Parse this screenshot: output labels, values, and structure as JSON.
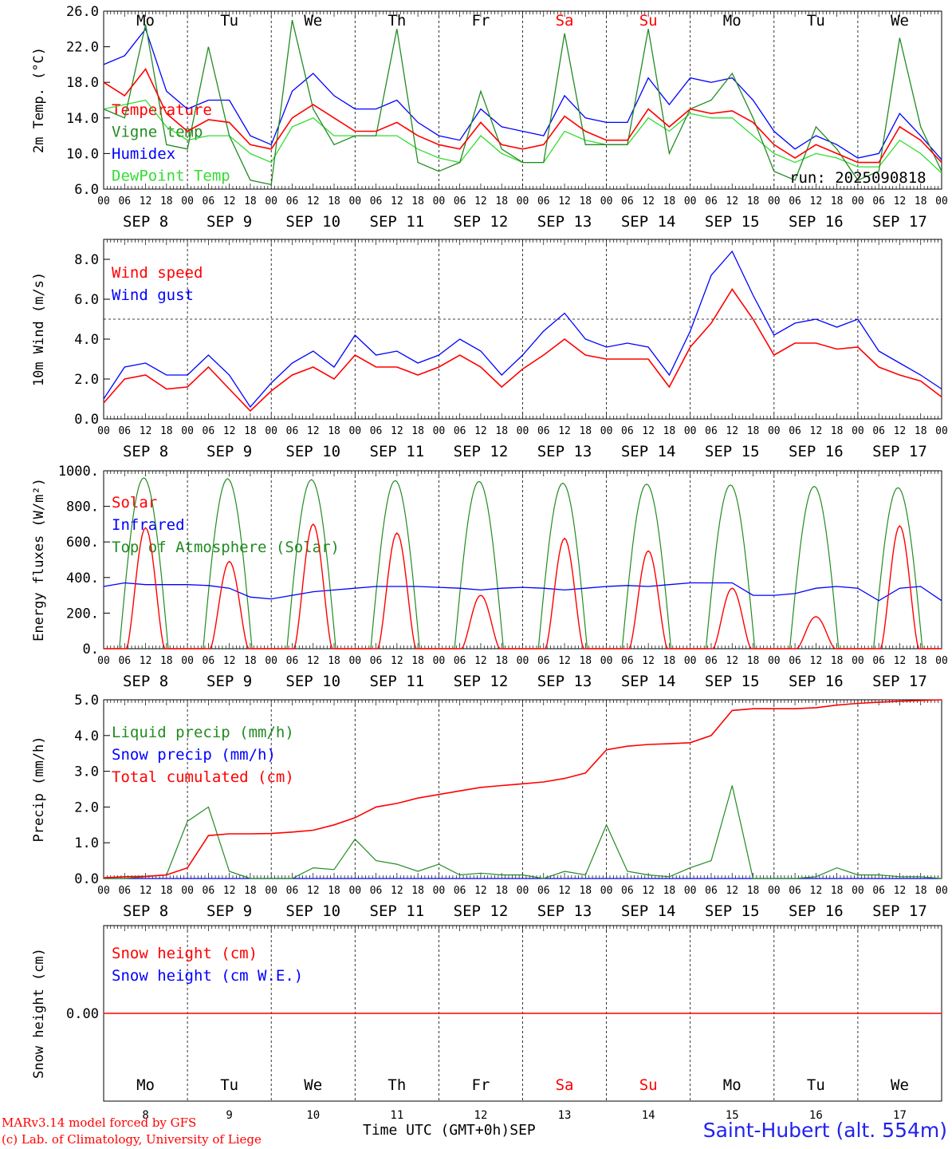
{
  "days": [
    "Mo",
    "Tu",
    "We",
    "Th",
    "Fr",
    "Sa",
    "Su",
    "Mo",
    "Tu",
    "We"
  ],
  "weekend_days": [
    5,
    6
  ],
  "date_labels": [
    "SEP  8",
    "SEP  9",
    "SEP 10",
    "SEP 11",
    "SEP 12",
    "SEP 13",
    "SEP 14",
    "SEP 15",
    "SEP 16",
    "SEP 17"
  ],
  "hour_ticks": [
    "00",
    "06",
    "12",
    "18"
  ],
  "bottom_day_numbers": [
    "8",
    "9",
    "10",
    "11",
    "12",
    "13",
    "14",
    "15",
    "16",
    "17"
  ],
  "colors": {
    "red": "#ff0000",
    "green": "#228b22",
    "blue": "#0000ff",
    "lime": "#33dd33",
    "label_blue": "#2222ee"
  },
  "chart_data": [
    {
      "type": "line",
      "ylabel": "2m Temp. (°C)",
      "ylim": [
        6,
        26
      ],
      "yticks": [
        "6.0",
        "10.0",
        "14.0",
        "18.0",
        "22.0",
        "26.0"
      ],
      "annotation": "run: 2025090818",
      "legend": [
        "Temperature",
        "Vigne temp",
        "Humidex",
        "DewPoint Temp"
      ],
      "x_hours": [
        0,
        6,
        12,
        18,
        24,
        30,
        36,
        42,
        48,
        54,
        60,
        66,
        72,
        78,
        84,
        90,
        96,
        102,
        108,
        114,
        120,
        126,
        132,
        138,
        144,
        150,
        156,
        162,
        168,
        174,
        180,
        186,
        192,
        198,
        204,
        210,
        216,
        222,
        228,
        234,
        240
      ],
      "series": [
        {
          "name": "Temperature",
          "values": [
            18,
            16.5,
            19.5,
            14.5,
            12.5,
            13.8,
            13.5,
            11,
            10.5,
            14,
            15.5,
            14,
            12.5,
            12.5,
            13.5,
            12,
            11,
            10.5,
            13.5,
            11,
            10.5,
            11,
            14.2,
            12.5,
            11.5,
            11.5,
            15,
            13,
            15,
            14.5,
            14.8,
            13.5,
            11,
            9.5,
            11,
            10,
            9,
            9,
            13,
            11.5,
            9
          ]
        },
        {
          "name": "Vigne temp",
          "values": [
            15,
            14,
            24.5,
            11,
            10.5,
            22,
            12,
            7,
            6.5,
            25,
            15,
            11,
            12,
            12,
            24,
            9,
            8,
            9,
            17,
            10.5,
            9,
            9,
            23.5,
            11,
            11,
            11,
            24,
            10,
            15,
            16,
            19,
            14,
            8,
            7,
            13,
            10.5,
            7,
            8,
            23,
            13,
            8
          ]
        },
        {
          "name": "Humidex",
          "values": [
            20,
            21,
            24,
            17,
            15,
            16,
            16,
            12,
            11,
            17,
            19,
            16.5,
            15,
            15,
            16,
            13.5,
            12,
            11.5,
            15,
            13,
            12.5,
            12,
            16.5,
            14,
            13.5,
            13.5,
            18.5,
            15.5,
            18.5,
            18,
            18.5,
            16,
            12.5,
            10.5,
            12,
            11,
            9.5,
            10,
            14.5,
            12,
            9.3
          ]
        },
        {
          "name": "DewPoint Temp",
          "values": [
            15,
            15.5,
            16,
            13,
            11.5,
            12,
            12,
            10,
            9,
            13,
            14,
            12,
            12,
            12,
            12,
            10.5,
            9.5,
            9,
            12,
            10,
            9,
            9,
            12.5,
            11.5,
            11,
            11,
            14,
            12.5,
            14.5,
            14,
            14,
            12,
            10,
            9,
            10,
            9.5,
            8.5,
            8.5,
            11.5,
            10,
            7.8
          ]
        }
      ]
    },
    {
      "type": "line",
      "ylabel": "10m Wind (m/s)",
      "ylim": [
        0,
        9
      ],
      "yticks": [
        "0.0",
        "2.0",
        "4.0",
        "6.0",
        "8.0"
      ],
      "reference_line": 5,
      "legend": [
        "Wind speed",
        "Wind gust"
      ],
      "x_hours": [
        0,
        6,
        12,
        18,
        24,
        30,
        36,
        42,
        48,
        54,
        60,
        66,
        72,
        78,
        84,
        90,
        96,
        102,
        108,
        114,
        120,
        126,
        132,
        138,
        144,
        150,
        156,
        162,
        168,
        174,
        180,
        186,
        192,
        198,
        204,
        210,
        216,
        222,
        228,
        234,
        240
      ],
      "series": [
        {
          "name": "Wind speed",
          "values": [
            0.8,
            2,
            2.2,
            1.5,
            1.6,
            2.6,
            1.5,
            0.4,
            1.4,
            2.2,
            2.6,
            2.0,
            3.2,
            2.6,
            2.6,
            2.2,
            2.6,
            3.2,
            2.6,
            1.6,
            2.5,
            3.2,
            4.0,
            3.2,
            3.0,
            3.0,
            3.0,
            1.6,
            3.6,
            4.8,
            6.5,
            5.0,
            3.2,
            3.8,
            3.8,
            3.5,
            3.6,
            2.6,
            2.2,
            1.9,
            1.1
          ]
        },
        {
          "name": "Wind gust",
          "values": [
            1.0,
            2.6,
            2.8,
            2.2,
            2.2,
            3.2,
            2.2,
            0.6,
            1.8,
            2.8,
            3.4,
            2.6,
            4.2,
            3.2,
            3.4,
            2.8,
            3.2,
            4.0,
            3.4,
            2.2,
            3.2,
            4.4,
            5.3,
            4.0,
            3.6,
            3.8,
            3.6,
            2.2,
            4.4,
            7.2,
            8.4,
            6.2,
            4.2,
            4.8,
            5.0,
            4.6,
            5.0,
            3.4,
            2.8,
            2.2,
            1.5
          ]
        }
      ]
    },
    {
      "type": "line",
      "ylabel": "Energy fluxes (W/m²)",
      "ylim": [
        0,
        1000
      ],
      "yticks": [
        "0.",
        "200.",
        "400.",
        "600.",
        "800.",
        "1000."
      ],
      "legend": [
        "Solar",
        "Infrared",
        "Top of Atmosphere (Solar)"
      ],
      "toa_peaks": [
        960,
        955,
        950,
        945,
        940,
        930,
        925,
        920,
        912,
        905
      ],
      "solar_peaks": [
        680,
        490,
        700,
        650,
        300,
        620,
        550,
        340,
        180,
        690
      ],
      "x_hours": [
        0,
        6,
        12,
        18,
        24,
        30,
        36,
        42,
        48,
        54,
        60,
        66,
        72,
        78,
        84,
        90,
        96,
        102,
        108,
        114,
        120,
        126,
        132,
        138,
        144,
        150,
        156,
        162,
        168,
        174,
        180,
        186,
        192,
        198,
        204,
        210,
        216,
        222,
        228,
        234,
        240
      ],
      "infrared": [
        350,
        370,
        360,
        360,
        360,
        355,
        340,
        290,
        280,
        300,
        320,
        330,
        340,
        350,
        350,
        350,
        345,
        340,
        330,
        340,
        345,
        340,
        330,
        340,
        350,
        355,
        350,
        360,
        370,
        370,
        370,
        300,
        300,
        310,
        340,
        350,
        340,
        270,
        340,
        350,
        270
      ]
    },
    {
      "type": "line",
      "ylabel": "Precip (mm/h)",
      "ylim": [
        0,
        5
      ],
      "yticks": [
        "0.0",
        "1.0",
        "2.0",
        "3.0",
        "4.0",
        "5.0"
      ],
      "legend": [
        "Liquid precip (mm/h)",
        "Snow precip (mm/h)",
        "Total cumulated (cm)"
      ],
      "x_hours": [
        0,
        6,
        12,
        18,
        24,
        30,
        36,
        42,
        48,
        54,
        60,
        66,
        72,
        78,
        84,
        90,
        96,
        102,
        108,
        114,
        120,
        126,
        132,
        138,
        144,
        150,
        156,
        162,
        168,
        174,
        180,
        186,
        192,
        198,
        204,
        210,
        216,
        222,
        228,
        234,
        240
      ],
      "series": [
        {
          "name": "Total cumulated (cm)",
          "values": [
            0.02,
            0.05,
            0.06,
            0.1,
            0.3,
            1.2,
            1.25,
            1.25,
            1.26,
            1.3,
            1.35,
            1.5,
            1.7,
            2.0,
            2.1,
            2.25,
            2.35,
            2.45,
            2.55,
            2.6,
            2.65,
            2.7,
            2.8,
            2.95,
            3.6,
            3.7,
            3.75,
            3.77,
            3.8,
            4.0,
            4.7,
            4.75,
            4.75,
            4.75,
            4.78,
            4.85,
            4.9,
            4.93,
            4.96,
            4.98,
            5.0
          ]
        },
        {
          "name": "Liquid precip (mm/h)",
          "values": [
            0,
            0,
            0.05,
            0.1,
            1.6,
            2.0,
            0.2,
            0,
            0,
            0,
            0.3,
            0.25,
            1.1,
            0.5,
            0.4,
            0.2,
            0.4,
            0.1,
            0.15,
            0.1,
            0.1,
            0,
            0.2,
            0.1,
            1.5,
            0.2,
            0.1,
            0.05,
            0.3,
            0.5,
            2.6,
            0,
            0,
            0,
            0.05,
            0.3,
            0.1,
            0.1,
            0.05,
            0.05,
            0
          ]
        },
        {
          "name": "Snow precip (mm/h)",
          "values": [
            0,
            0,
            0,
            0,
            0,
            0,
            0,
            0,
            0,
            0,
            0,
            0,
            0,
            0,
            0,
            0,
            0,
            0,
            0,
            0,
            0,
            0,
            0,
            0,
            0,
            0,
            0,
            0,
            0,
            0,
            0,
            0,
            0,
            0,
            0,
            0,
            0,
            0,
            0,
            0,
            0
          ]
        }
      ]
    },
    {
      "type": "line",
      "ylabel": "Snow height (cm)",
      "yticks": [
        "0.00"
      ],
      "legend": [
        "Snow height (cm)",
        "Snow height (cm W.E.)"
      ],
      "values": [
        0
      ]
    }
  ],
  "footer": {
    "credit_line1": "MARv3.14 model forced by GFS",
    "credit_line2": "(c) Lab. of Climatology, University of Liege",
    "axis_title": "Time UTC (GMT+0h)SEP",
    "station": "Saint-Hubert (alt. 554m)"
  }
}
